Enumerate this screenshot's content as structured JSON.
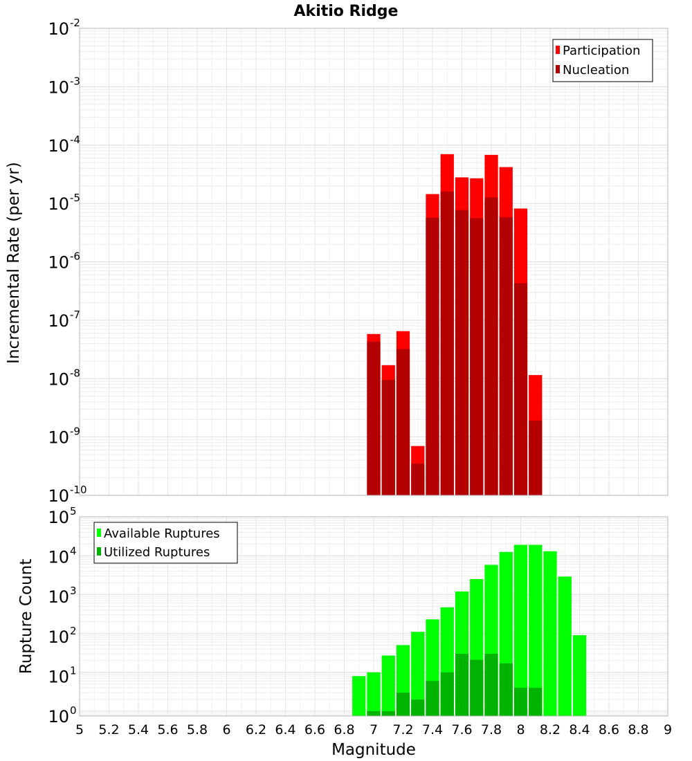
{
  "chart_data": [
    {
      "type": "bar",
      "title": "Akitio Ridge",
      "ylabel": "Incremental Rate (per yr)",
      "xlabel": "",
      "yscale": "log",
      "ylim": [
        1e-10,
        0.01
      ],
      "xlim": [
        5,
        9
      ],
      "legend_position": "top-right",
      "colors": {
        "Participation": "#ff0000",
        "Nucleation": "#b30000"
      },
      "x": [
        7.0,
        7.1,
        7.2,
        7.3,
        7.4,
        7.5,
        7.6,
        7.7,
        7.8,
        7.9,
        8.0,
        8.1
      ],
      "series": [
        {
          "name": "Participation",
          "values": [
            5.8e-08,
            1.7e-08,
            6.5e-08,
            7e-10,
            1.45e-05,
            7e-05,
            2.8e-05,
            2.7e-05,
            6.8e-05,
            4.2e-05,
            8.2e-06,
            1.15e-08
          ]
        },
        {
          "name": "Nucleation",
          "values": [
            4.3e-08,
            9.5e-09,
            3.2e-08,
            3.5e-10,
            5.7e-06,
            1.6e-05,
            7.7e-06,
            5.6e-06,
            1.27e-05,
            5.8e-06,
            4.3e-07,
            1.9e-09
          ]
        }
      ]
    },
    {
      "type": "bar",
      "title": "",
      "ylabel": "Rupture Count",
      "xlabel": "Magnitude",
      "yscale": "log",
      "ylim": [
        0.75,
        100000
      ],
      "xlim": [
        5,
        9
      ],
      "legend_position": "top-left",
      "colors": {
        "Available Ruptures": "#00ff00",
        "Utilized Ruptures": "#00b300"
      },
      "x": [
        6.9,
        7.0,
        7.1,
        7.2,
        7.3,
        7.4,
        7.5,
        7.6,
        7.7,
        7.8,
        7.9,
        8.0,
        8.1,
        8.2,
        8.3,
        8.4
      ],
      "series": [
        {
          "name": "Available Ruptures",
          "values": [
            8,
            10,
            27,
            50,
            110,
            230,
            470,
            1200,
            2500,
            5800,
            12500,
            19000,
            19000,
            13000,
            2900,
            90
          ]
        },
        {
          "name": "Utilized Ruptures",
          "values": [
            0,
            1,
            1,
            3,
            2,
            6,
            10,
            30,
            21,
            30,
            17,
            4,
            4,
            0,
            0,
            0
          ]
        }
      ]
    }
  ],
  "x_ticks": [
    "5",
    "5.2",
    "5.4",
    "5.6",
    "5.8",
    "6",
    "6.2",
    "6.4",
    "6.6",
    "6.8",
    "7",
    "7.2",
    "7.4",
    "7.6",
    "7.8",
    "8",
    "8.2",
    "8.4",
    "8.6",
    "8.8",
    "9"
  ],
  "top_y_ticks": [
    {
      "base": "10",
      "exp": "-2"
    },
    {
      "base": "10",
      "exp": "-3"
    },
    {
      "base": "10",
      "exp": "-4"
    },
    {
      "base": "10",
      "exp": "-5"
    },
    {
      "base": "10",
      "exp": "-6"
    },
    {
      "base": "10",
      "exp": "-7"
    },
    {
      "base": "10",
      "exp": "-8"
    },
    {
      "base": "10",
      "exp": "-9"
    },
    {
      "base": "10",
      "exp": "-10"
    }
  ],
  "bottom_y_ticks": [
    {
      "base": "10",
      "exp": "5"
    },
    {
      "base": "10",
      "exp": "4"
    },
    {
      "base": "10",
      "exp": "3"
    },
    {
      "base": "10",
      "exp": "2"
    },
    {
      "base": "10",
      "exp": "1"
    },
    {
      "base": "10",
      "exp": "0"
    }
  ]
}
